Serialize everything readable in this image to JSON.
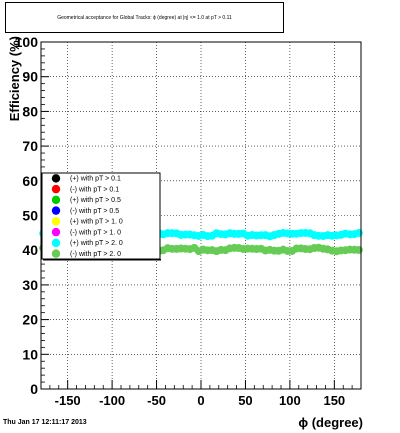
{
  "chart_data": {
    "type": "scatter",
    "title": "Geometrical acceptance for Global Tracks: ϕ (degree) at |η| <= 1.0 at pT > 0.11",
    "xlabel": "ϕ (degree)",
    "ylabel": "Efficiency (%)",
    "xlim": [
      -180,
      180
    ],
    "ylim": [
      0,
      100
    ],
    "xticks": [
      -150,
      -100,
      -50,
      0,
      50,
      100,
      150
    ],
    "yticks": [
      0,
      10,
      20,
      30,
      40,
      50,
      60,
      70,
      80,
      90,
      100
    ],
    "grid": true,
    "legend_position": "middle-left",
    "series": [
      {
        "name": "(+) with pT > 0.1",
        "color": "#000000",
        "mean": null
      },
      {
        "name": "(-) with pT > 0.1",
        "color": "#ff0000",
        "mean": null
      },
      {
        "name": "(+) with pT > 0.5",
        "color": "#00cc00",
        "mean": null
      },
      {
        "name": "(-) with pT > 0.5",
        "color": "#0000ff",
        "mean": null
      },
      {
        "name": "(+) with pT > 1. 0",
        "color": "#ffff00",
        "mean": null
      },
      {
        "name": "(-) with pT > 1. 0",
        "color": "#ff00ff",
        "mean": null
      },
      {
        "name": "(+) with pT > 2. 0",
        "color": "#00ffff",
        "mean": 44.5
      },
      {
        "name": "(-) with pT > 2. 0",
        "color": "#66cc55",
        "mean": 40.2
      }
    ]
  },
  "footer": {
    "timestamp": "Thu Jan 17 12:11:17 2013"
  }
}
